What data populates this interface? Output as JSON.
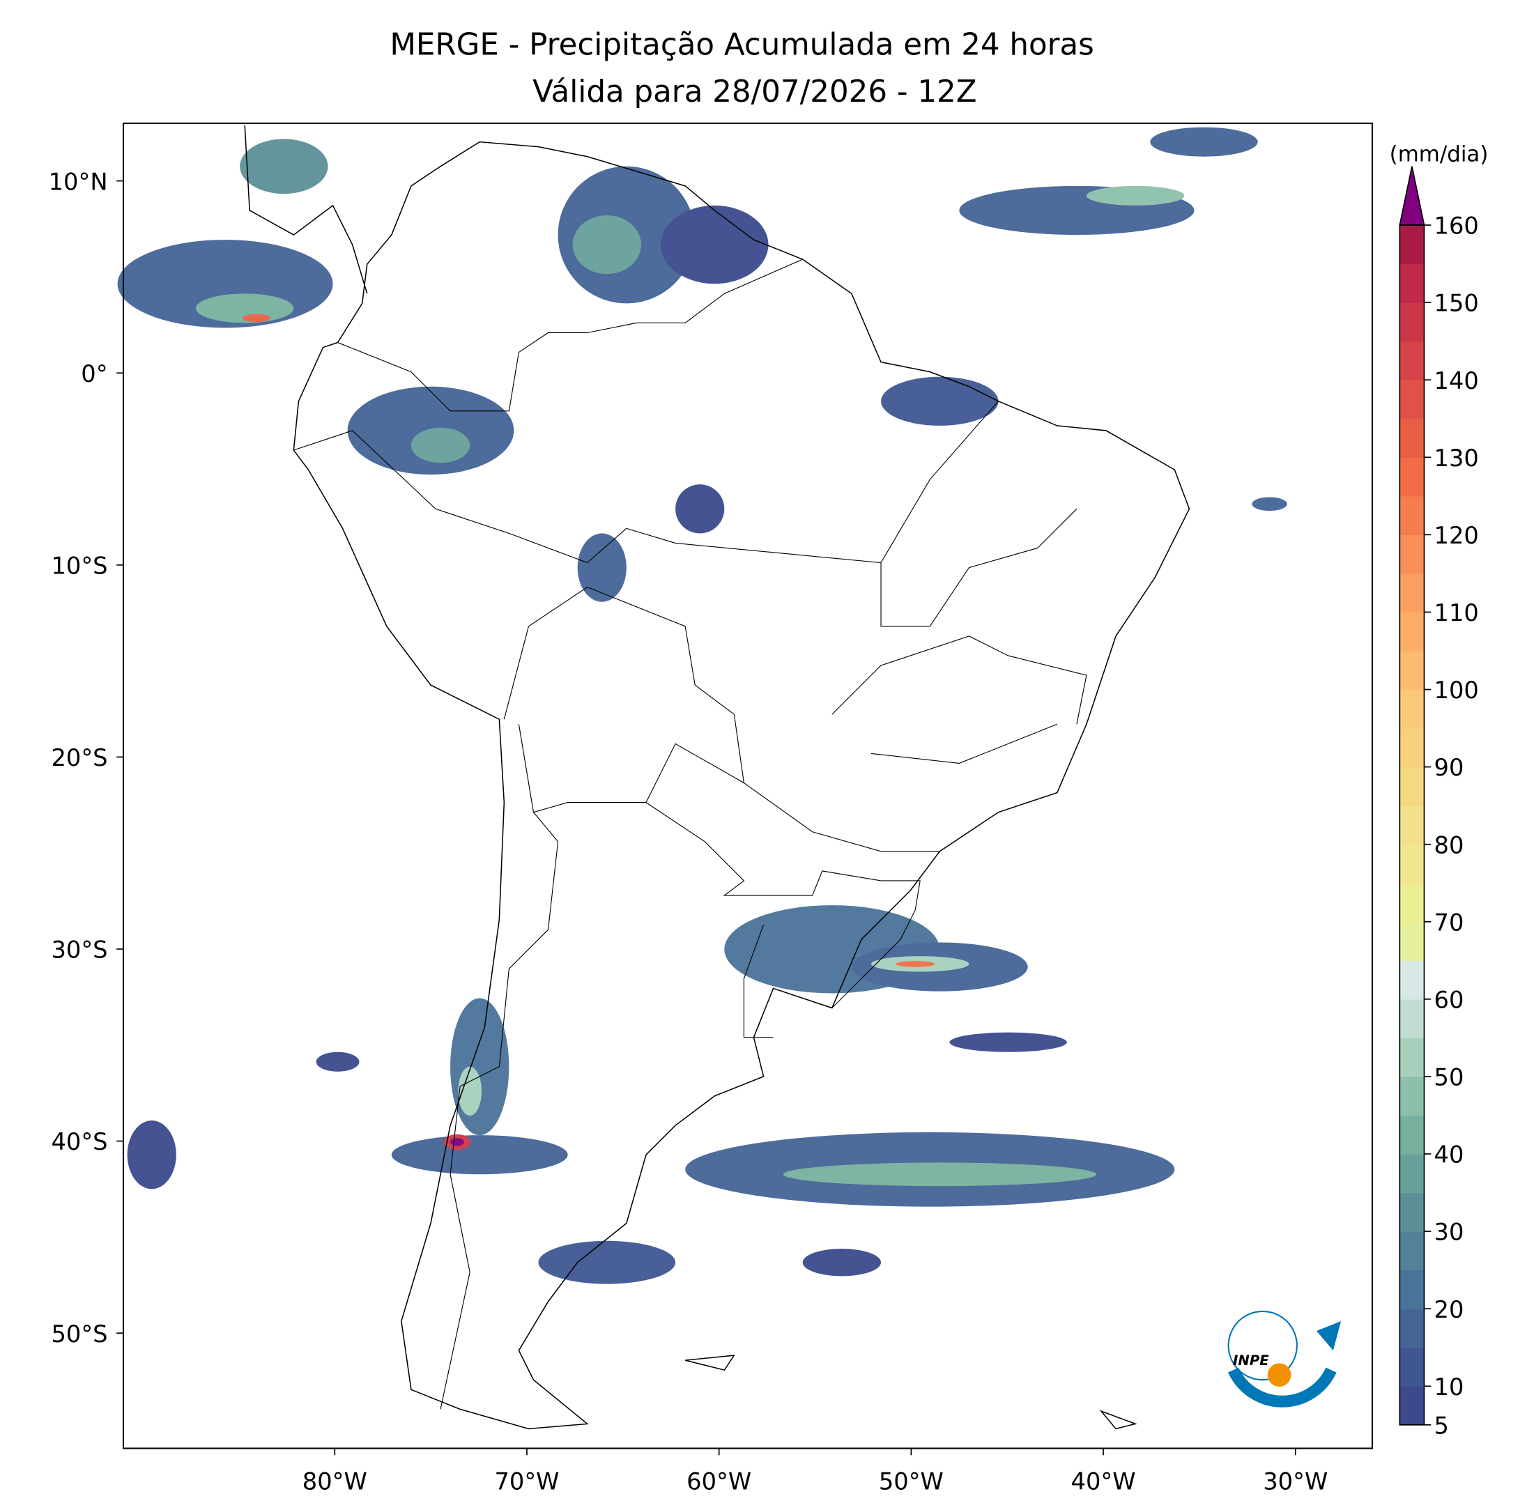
{
  "map": {
    "title": "MERGE - Precipitação Acumulada em 24 horas",
    "subtitle": "Válida para 28/07/2026 - 12Z",
    "lonlim": [
      -91,
      -26
    ],
    "latlim": [
      -56,
      13
    ],
    "xticks": [
      {
        "value": -80,
        "label": "80°W"
      },
      {
        "value": -70,
        "label": "70°W"
      },
      {
        "value": -60,
        "label": "60°W"
      },
      {
        "value": -50,
        "label": "50°W"
      },
      {
        "value": -40,
        "label": "40°W"
      },
      {
        "value": -30,
        "label": "30°W"
      }
    ],
    "yticks": [
      {
        "value": 10,
        "label": "10°N"
      },
      {
        "value": 0,
        "label": "0°"
      },
      {
        "value": -10,
        "label": "10°S"
      },
      {
        "value": -20,
        "label": "20°S"
      },
      {
        "value": -30,
        "label": "30°S"
      },
      {
        "value": -40,
        "label": "40°S"
      },
      {
        "value": -50,
        "label": "50°S"
      }
    ]
  },
  "colorbar": {
    "label": "(mm/dia)",
    "range": [
      5,
      160
    ],
    "ticks": [
      5,
      10,
      20,
      30,
      40,
      50,
      60,
      70,
      80,
      90,
      100,
      110,
      120,
      130,
      140,
      150,
      160
    ],
    "colors": [
      "#3c4a8d",
      "#3f5692",
      "#446496",
      "#4a7399",
      "#528199",
      "#5c8f97",
      "#67a09a",
      "#77b09f",
      "#8cc0aa",
      "#a6d0bc",
      "#c1ddd2",
      "#d7e8e6",
      "#e6f09a",
      "#ecee94",
      "#efe68e",
      "#f3e08a",
      "#f6d883",
      "#f9d07e",
      "#fbc87a",
      "#fdbb72",
      "#fcad68",
      "#fb9f61",
      "#f98f57",
      "#f67e4e",
      "#f26d45",
      "#e85f44",
      "#df5245",
      "#d64447",
      "#cc3748",
      "#c02a48",
      "#a91b45"
    ],
    "extend_color": "#800080"
  },
  "logo": {
    "text": "INPE"
  }
}
